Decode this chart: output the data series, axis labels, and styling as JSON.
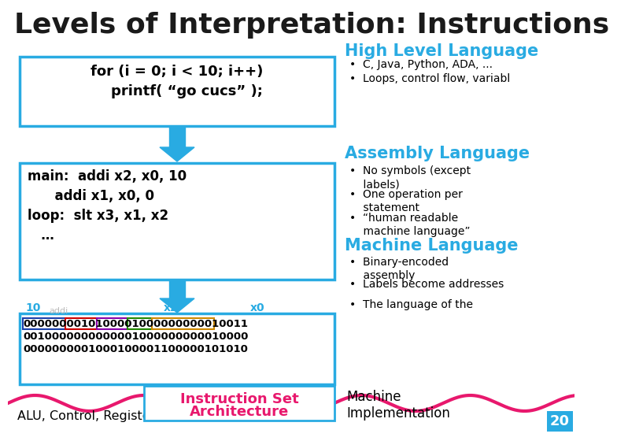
{
  "title": "Levels of Interpretation: Instructions",
  "title_fontsize": 26,
  "bg_color": "#ffffff",
  "cyan": "#29ABE2",
  "cyan_dark": "#1a8ab5",
  "pink": "#e8186d",
  "dark_text": "#1a1a1a",
  "box1_text": "for (i = 0; i < 10; i++)\n    printf( “go cucs” );",
  "box2_text": "main:  addi x2, x0, 10\n      addi x1, x0, 0\nloop:  slt x3, x1, x2\n   …",
  "box3_line1": "0000000010100001000000000010011",
  "box3_line2": "0010000000000001000000000010000",
  "box3_line3": "0000000001000100001100000101010",
  "box3_label1": "10",
  "box3_label2": "x2",
  "box3_label3": "x0",
  "box3_label_ghost": "addi",
  "hl_title": "High Level Language",
  "hl_bullets": [
    "C, Java, Python, ADA, ...",
    "Loops, control flow, variabl"
  ],
  "asm_title": "Assembly Language",
  "asm_bullets": [
    "No symbols (except\n    labels)",
    "One operation per\n    statement",
    "“human readable\n    machine language”"
  ],
  "ml_title": "Machine Language",
  "ml_bullets": [
    "Binary-encoded\n    assembly",
    "Labels become addresses",
    "The language of the"
  ],
  "isa_box_text": "Instruction Set",
  "arch_text": "Architecture",
  "machine_text": "Machine\nImplementation",
  "alu_text": "ALU, Control, Register File, ...",
  "page_num": "20",
  "seg_colors": [
    "#1a3faa",
    "#cc0000",
    "#8800aa",
    "#228800",
    "#cc8800"
  ],
  "seg_starts": [
    0,
    7,
    12,
    17,
    21
  ],
  "seg_ends": [
    7,
    12,
    17,
    21,
    31
  ]
}
